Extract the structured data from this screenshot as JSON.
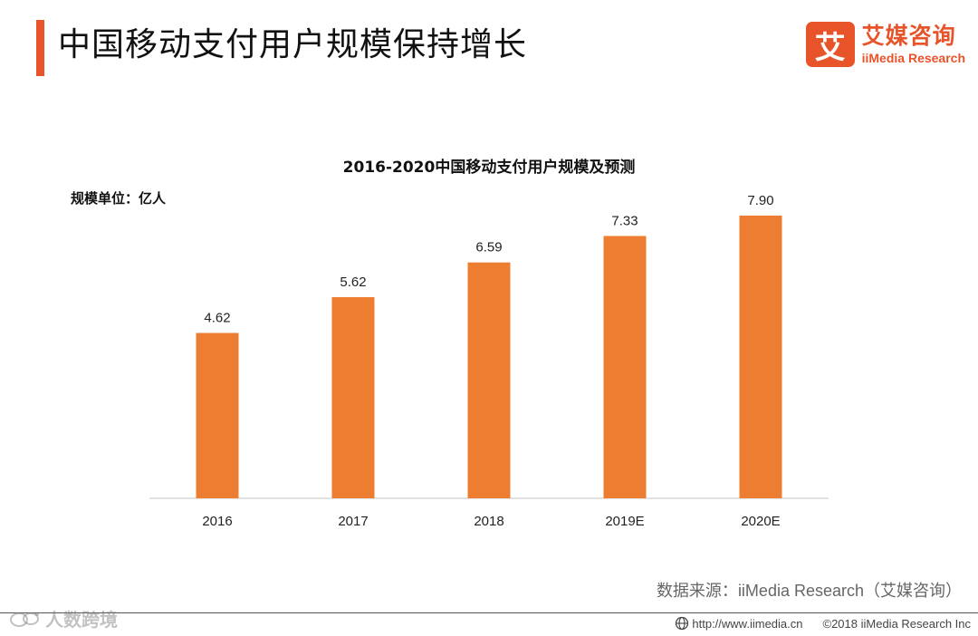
{
  "header": {
    "title": "中国移动支付用户规模保持增长",
    "brand_mark": "艾",
    "brand_name": "艾媒咨询",
    "brand_sub": "iiMedia Research"
  },
  "chart_data": {
    "type": "bar",
    "title": "2016-2020中国移动支付用户规模及预测",
    "ylabel": "规模单位：亿人",
    "xlabel": "",
    "categories": [
      "2016",
      "2017",
      "2018",
      "2019E",
      "2020E"
    ],
    "values": [
      4.62,
      5.62,
      6.59,
      7.33,
      7.9
    ],
    "value_labels": [
      "4.62",
      "5.62",
      "6.59",
      "7.33",
      "7.90"
    ],
    "ylim": [
      0,
      8.0
    ],
    "grid": false,
    "legend": "none",
    "bar_color": "#ed7d31"
  },
  "source": {
    "prefix": "数据来源：",
    "name": "iiMedia Research",
    "suffix": "（艾媒咨询）"
  },
  "footer": {
    "url": "http://www.iimedia.cn",
    "copyright": "©2018  iiMedia Research  Inc",
    "watermark": "人数跨境"
  },
  "colors": {
    "accent": "#e8542a",
    "bar": "#ed7d31"
  }
}
